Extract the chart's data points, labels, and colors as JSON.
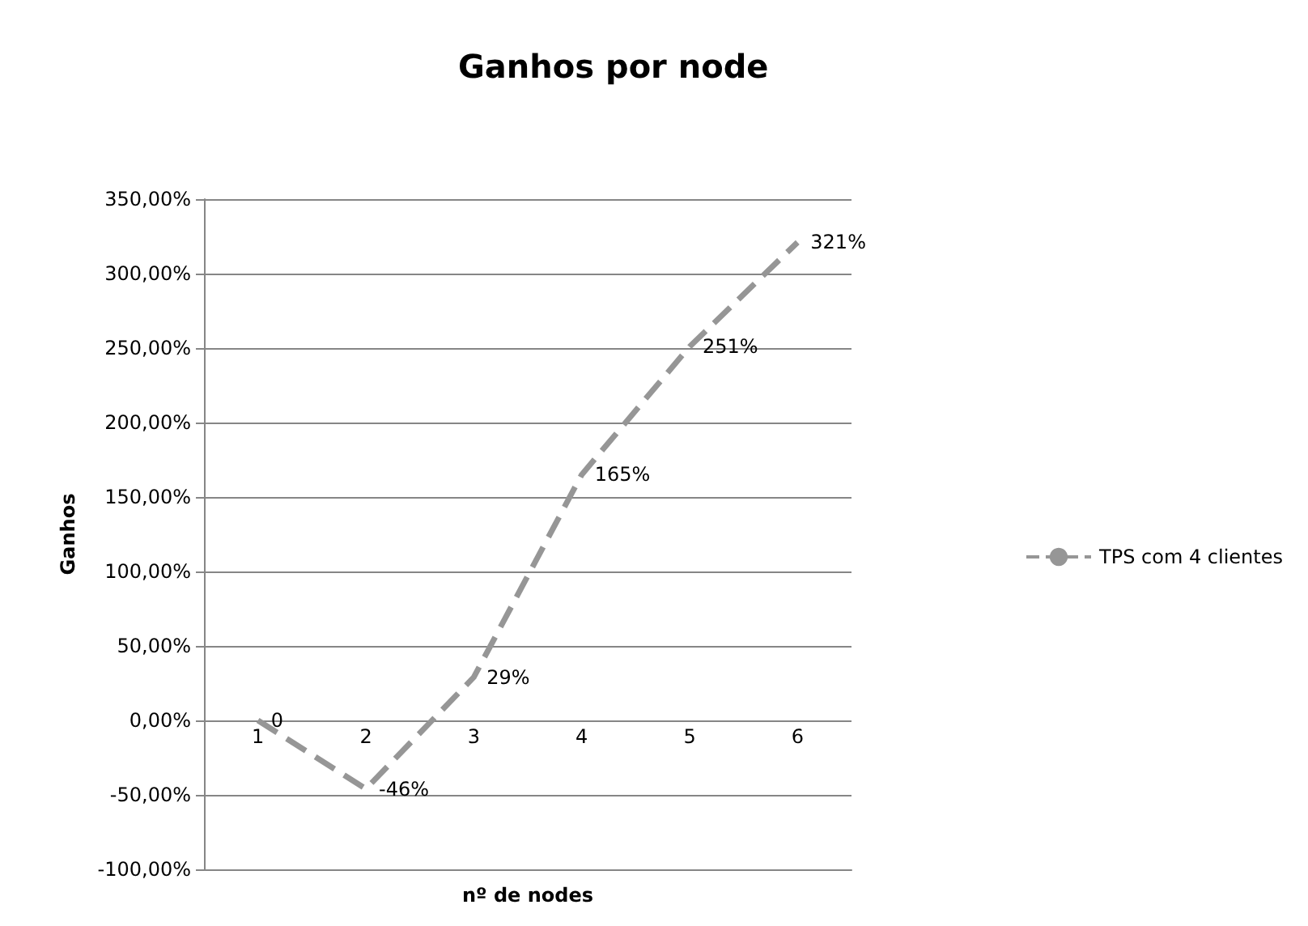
{
  "chart_data": {
    "type": "line",
    "title": "Ganhos por node",
    "xlabel": "nº de nodes",
    "ylabel": "Ganhos",
    "categories": [
      "1",
      "2",
      "3",
      "4",
      "5",
      "6"
    ],
    "series": [
      {
        "name": "TPS com 4 clientes",
        "color": "#969696",
        "values": [
          0,
          -46,
          29,
          165,
          251,
          321
        ],
        "value_labels": [
          "0",
          "-46%",
          "29%",
          "165%",
          "251%",
          "321%"
        ]
      }
    ],
    "ylim": [
      -100,
      350
    ],
    "yticks": [
      {
        "value": -100,
        "label": "-100,00%"
      },
      {
        "value": -50,
        "label": "-50,00%"
      },
      {
        "value": 0,
        "label": "0,00%"
      },
      {
        "value": 50,
        "label": "50,00%"
      },
      {
        "value": 100,
        "label": "100,00%"
      },
      {
        "value": 150,
        "label": "150,00%"
      },
      {
        "value": 200,
        "label": "200,00%"
      },
      {
        "value": 250,
        "label": "250,00%"
      },
      {
        "value": 300,
        "label": "300,00%"
      },
      {
        "value": 350,
        "label": "350,00%"
      }
    ],
    "grid": "y",
    "legend": "right",
    "marker": "none",
    "line_style": "dashed"
  }
}
